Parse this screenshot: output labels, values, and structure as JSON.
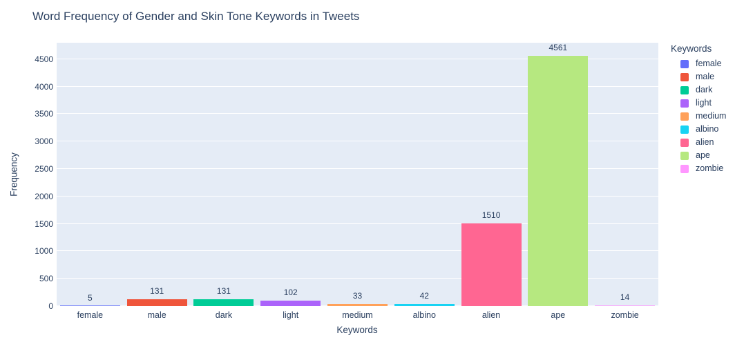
{
  "chart_data": {
    "type": "bar",
    "title": "Word Frequency of Gender and Skin Tone Keywords in Tweets",
    "xlabel": "Keywords",
    "ylabel": "Frequency",
    "categories": [
      "female",
      "male",
      "dark",
      "light",
      "medium",
      "albino",
      "alien",
      "ape",
      "zombie"
    ],
    "values": [
      5,
      131,
      131,
      102,
      33,
      42,
      1510,
      4561,
      14
    ],
    "value_labels": [
      "5",
      "131",
      "131",
      "102",
      "33",
      "42",
      "1510",
      "4561",
      "14"
    ],
    "bar_colors": [
      "#636EFA",
      "#EF553B",
      "#00CC96",
      "#AB63FA",
      "#FFA15A",
      "#19D3F3",
      "#FF6692",
      "#B6E880",
      "#FF97FF"
    ],
    "ylim": [
      0,
      4800
    ],
    "yticks": [
      0,
      500,
      1000,
      1500,
      2000,
      2500,
      3000,
      3500,
      4000,
      4500
    ],
    "grid": true,
    "legend": {
      "title": "Keywords",
      "position": "right",
      "entries": [
        {
          "label": "female",
          "color": "#636EFA"
        },
        {
          "label": "male",
          "color": "#EF553B"
        },
        {
          "label": "dark",
          "color": "#00CC96"
        },
        {
          "label": "light",
          "color": "#AB63FA"
        },
        {
          "label": "medium",
          "color": "#FFA15A"
        },
        {
          "label": "albino",
          "color": "#19D3F3"
        },
        {
          "label": "alien",
          "color": "#FF6692"
        },
        {
          "label": "ape",
          "color": "#B6E880"
        },
        {
          "label": "zombie",
          "color": "#FF97FF"
        }
      ]
    },
    "colors": {
      "paper_bg": "#FFFFFF",
      "plot_bg": "#E5ECF6",
      "grid": "#FFFFFF",
      "text": "#2A3F5F"
    }
  }
}
